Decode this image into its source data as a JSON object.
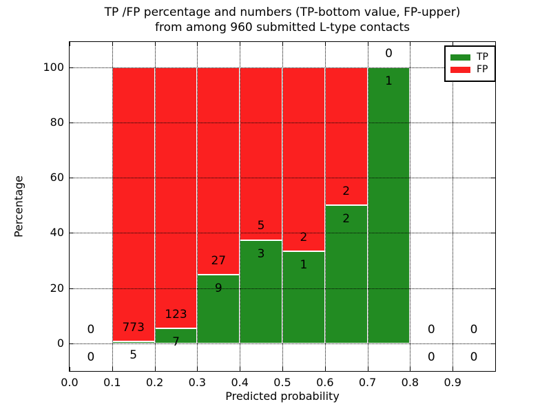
{
  "chart_data": {
    "type": "bar",
    "stacked": true,
    "title_line1": "TP /FP percentage and numbers (TP-bottom value, FP-upper)",
    "title_line2": "from among 960 submitted L-type contacts",
    "xlabel": "Predicted probability",
    "ylabel": "Percentage",
    "xlim": [
      0.0,
      1.0
    ],
    "ylim": [
      -10,
      109.2
    ],
    "xticks": [
      {
        "v": 0.0,
        "label": "0.0"
      },
      {
        "v": 0.1,
        "label": "0.1"
      },
      {
        "v": 0.2,
        "label": "0.2"
      },
      {
        "v": 0.3,
        "label": "0.3"
      },
      {
        "v": 0.4,
        "label": "0.4"
      },
      {
        "v": 0.5,
        "label": "0.5"
      },
      {
        "v": 0.6,
        "label": "0.6"
      },
      {
        "v": 0.7,
        "label": "0.7"
      },
      {
        "v": 0.8,
        "label": "0.8"
      },
      {
        "v": 0.9,
        "label": "0.9"
      },
      {
        "v": 1.0,
        "label": ""
      }
    ],
    "yticks": [
      {
        "v": 0,
        "label": "0"
      },
      {
        "v": 20,
        "label": "20"
      },
      {
        "v": 40,
        "label": "40"
      },
      {
        "v": 60,
        "label": "60"
      },
      {
        "v": 80,
        "label": "80"
      },
      {
        "v": 100,
        "label": "100"
      }
    ],
    "grid": true,
    "legend_position": "upper-right",
    "legend": [
      {
        "label": "TP",
        "color": "#228b22"
      },
      {
        "label": "FP",
        "color": "#fb2020"
      }
    ],
    "annotation_note": "TP count shown below segment boundary, FP count shown above it",
    "bins": [
      {
        "range": [
          0.0,
          0.1
        ],
        "tp": 0,
        "fp": 0
      },
      {
        "range": [
          0.1,
          0.2
        ],
        "tp": 5,
        "fp": 773
      },
      {
        "range": [
          0.2,
          0.3
        ],
        "tp": 7,
        "fp": 123
      },
      {
        "range": [
          0.3,
          0.4
        ],
        "tp": 9,
        "fp": 27
      },
      {
        "range": [
          0.4,
          0.5
        ],
        "tp": 3,
        "fp": 5
      },
      {
        "range": [
          0.5,
          0.6
        ],
        "tp": 1,
        "fp": 2
      },
      {
        "range": [
          0.6,
          0.7
        ],
        "tp": 2,
        "fp": 2
      },
      {
        "range": [
          0.7,
          0.8
        ],
        "tp": 1,
        "fp": 0
      },
      {
        "range": [
          0.8,
          0.9
        ],
        "tp": 0,
        "fp": 0
      },
      {
        "range": [
          0.9,
          1.0
        ],
        "tp": 0,
        "fp": 0
      }
    ],
    "colors": {
      "tp": "#228b22",
      "fp": "#fb2020",
      "bar_edge": "#ffffff",
      "grid": "#000000"
    }
  }
}
